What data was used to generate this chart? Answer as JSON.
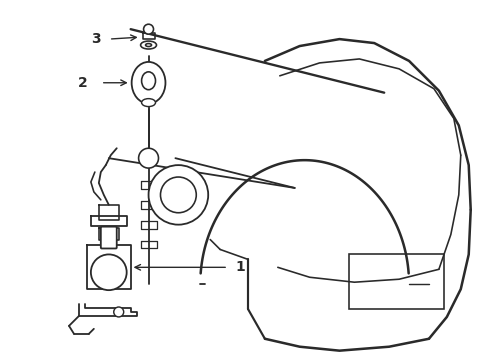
{
  "bg_color": "#ffffff",
  "line_color": "#2a2a2a",
  "lw": 1.3,
  "fig_width": 4.9,
  "fig_height": 3.6,
  "label_fontsize": 10,
  "label_fontweight": "bold",
  "dpi": 100
}
